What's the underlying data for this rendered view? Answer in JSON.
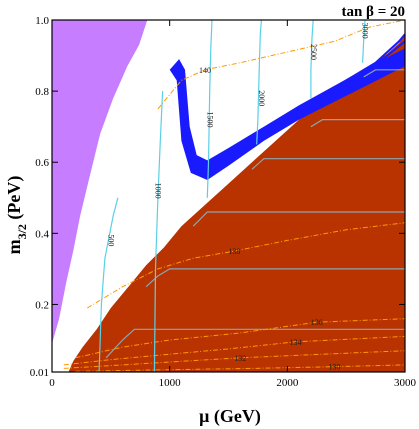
{
  "chart_data": {
    "type": "contour",
    "title": "tan β = 20",
    "xlabel": "μ  (GeV)",
    "ylabel_main": "m",
    "ylabel_sub": "3/2",
    "ylabel_unit": " (PeV)",
    "xlim": [
      0,
      3000
    ],
    "ylim": [
      0.01,
      1.0
    ],
    "x_ticks": [
      0,
      1000,
      2000,
      3000
    ],
    "x_tick_labels": [
      "0",
      "1000",
      "2000",
      "3000"
    ],
    "y_ticks": [
      0.01,
      0.2,
      0.4,
      0.6,
      0.8,
      1.0
    ],
    "y_tick_labels": [
      "0.01",
      "0.2",
      "0.4",
      "0.6",
      "0.8",
      "1.0"
    ],
    "colors": {
      "excluded_left": "#c77dff",
      "excluded_right": "#b83300",
      "blue_band": "#1a1aff",
      "cyan_contours": "#5ad0e6",
      "gray_contours": "#8aa5b0",
      "orange_contours": "#ff9900"
    },
    "regions": {
      "purple": [
        [
          0,
          0.09
        ],
        [
          60,
          0.16
        ],
        [
          120,
          0.26
        ],
        [
          180,
          0.35
        ],
        [
          240,
          0.45
        ],
        [
          320,
          0.56
        ],
        [
          410,
          0.68
        ],
        [
          520,
          0.78
        ],
        [
          640,
          0.87
        ],
        [
          740,
          0.93
        ],
        [
          810,
          1.0
        ],
        [
          0,
          1.0
        ]
      ],
      "red": [
        [
          140,
          0.01
        ],
        [
          3000,
          0.01
        ],
        [
          3000,
          0.96
        ],
        [
          2950,
          0.935
        ],
        [
          2850,
          0.905
        ],
        [
          2700,
          0.87
        ],
        [
          2500,
          0.83
        ],
        [
          2300,
          0.78
        ],
        [
          2100,
          0.72
        ],
        [
          1900,
          0.66
        ],
        [
          1700,
          0.6
        ],
        [
          1500,
          0.54
        ],
        [
          1300,
          0.48
        ],
        [
          1100,
          0.42
        ],
        [
          950,
          0.36
        ],
        [
          800,
          0.31
        ],
        [
          650,
          0.25
        ],
        [
          500,
          0.19
        ],
        [
          380,
          0.13
        ],
        [
          260,
          0.08
        ],
        [
          180,
          0.04
        ]
      ]
    },
    "blue_band": {
      "main": [
        [
          1000,
          0.86
        ],
        [
          1060,
          0.83
        ],
        [
          1100,
          0.66
        ],
        [
          1180,
          0.57
        ],
        [
          1320,
          0.55
        ],
        [
          1500,
          0.59
        ],
        [
          1800,
          0.66
        ],
        [
          2100,
          0.72
        ],
        [
          2400,
          0.77
        ],
        [
          2700,
          0.82
        ],
        [
          3000,
          0.87
        ],
        [
          3000,
          0.92
        ],
        [
          2700,
          0.87
        ],
        [
          2400,
          0.815
        ],
        [
          2100,
          0.76
        ],
        [
          1800,
          0.7
        ],
        [
          1500,
          0.64
        ],
        [
          1320,
          0.605
        ],
        [
          1230,
          0.62
        ],
        [
          1170,
          0.7
        ],
        [
          1130,
          0.86
        ],
        [
          1080,
          0.89
        ]
      ],
      "upper_lines": [
        [
          [
            2350,
            0.8
          ],
          [
            2550,
            0.84
          ],
          [
            2750,
            0.88
          ],
          [
            2950,
            0.94
          ],
          [
            3000,
            0.96
          ]
        ],
        [
          [
            2450,
            0.81
          ],
          [
            2650,
            0.85
          ],
          [
            2850,
            0.9
          ],
          [
            3000,
            0.94
          ]
        ]
      ]
    },
    "cyan_contours": [
      {
        "label": "500",
        "label_at": [
          480,
          0.38
        ],
        "points": [
          [
            400,
            0.01
          ],
          [
            420,
            0.2
          ],
          [
            450,
            0.33
          ],
          [
            520,
            0.45
          ],
          [
            560,
            0.5
          ]
        ]
      },
      {
        "label": "1000",
        "label_at": [
          880,
          0.52
        ],
        "points": [
          [
            870,
            0.01
          ],
          [
            880,
            0.3
          ],
          [
            900,
            0.5
          ],
          [
            920,
            0.66
          ],
          [
            940,
            0.8
          ]
        ]
      },
      {
        "label": "1500",
        "label_at": [
          1320,
          0.72
        ],
        "points": [
          [
            1320,
            0.5
          ],
          [
            1330,
            0.6
          ],
          [
            1340,
            0.8
          ],
          [
            1350,
            0.92
          ],
          [
            1360,
            1.0
          ]
        ]
      },
      {
        "label": "2000",
        "label_at": [
          1760,
          0.78
        ],
        "points": [
          [
            1740,
            0.65
          ],
          [
            1750,
            0.72
          ],
          [
            1760,
            0.85
          ],
          [
            1770,
            0.96
          ],
          [
            1780,
            1.0
          ]
        ]
      },
      {
        "label": "2500",
        "label_at": [
          2200,
          0.91
        ],
        "points": [
          [
            2200,
            0.78
          ],
          [
            2200,
            0.86
          ],
          [
            2210,
            0.95
          ],
          [
            2220,
            1.0
          ]
        ]
      },
      {
        "label": "3000",
        "label_at": [
          2640,
          0.97
        ],
        "points": [
          [
            2640,
            0.88
          ],
          [
            2650,
            0.95
          ],
          [
            2660,
            1.0
          ]
        ]
      }
    ],
    "gray_contours": [
      {
        "points": [
          [
            460,
            0.05
          ],
          [
            600,
            0.1
          ],
          [
            700,
            0.13
          ],
          [
            3000,
            0.13
          ]
        ]
      },
      {
        "points": [
          [
            800,
            0.25
          ],
          [
            900,
            0.28
          ],
          [
            1000,
            0.3
          ],
          [
            3000,
            0.3
          ]
        ]
      },
      {
        "points": [
          [
            1200,
            0.42
          ],
          [
            1320,
            0.46
          ],
          [
            3000,
            0.46
          ]
        ]
      },
      {
        "points": [
          [
            1700,
            0.58
          ],
          [
            1800,
            0.61
          ],
          [
            3000,
            0.61
          ]
        ]
      },
      {
        "points": [
          [
            2200,
            0.7
          ],
          [
            2300,
            0.72
          ],
          [
            3000,
            0.72
          ]
        ]
      },
      {
        "points": [
          [
            2650,
            0.84
          ],
          [
            2750,
            0.86
          ],
          [
            3000,
            0.86
          ]
        ]
      }
    ],
    "orange_contours": [
      {
        "label": "140",
        "label_at": [
          1300,
          0.86
        ],
        "points": [
          [
            900,
            0.75
          ],
          [
            1100,
            0.83
          ],
          [
            1300,
            0.86
          ],
          [
            1600,
            0.88
          ],
          [
            2000,
            0.91
          ],
          [
            2400,
            0.94
          ],
          [
            2700,
            0.98
          ],
          [
            3000,
            1.0
          ]
        ]
      },
      {
        "label": "138",
        "label_at": [
          1550,
          0.35
        ],
        "points": [
          [
            300,
            0.19
          ],
          [
            600,
            0.25
          ],
          [
            900,
            0.3
          ],
          [
            1200,
            0.33
          ],
          [
            1550,
            0.35
          ],
          [
            2000,
            0.38
          ],
          [
            2500,
            0.41
          ],
          [
            3000,
            0.43
          ]
        ]
      },
      {
        "label": "136",
        "label_at": [
          2250,
          0.15
        ],
        "points": [
          [
            200,
            0.05
          ],
          [
            600,
            0.08
          ],
          [
            1000,
            0.1
          ],
          [
            1600,
            0.12
          ],
          [
            2250,
            0.15
          ],
          [
            3000,
            0.16
          ]
        ]
      },
      {
        "label": "134",
        "label_at": [
          2070,
          0.095
        ],
        "points": [
          [
            100,
            0.03
          ],
          [
            500,
            0.045
          ],
          [
            1000,
            0.06
          ],
          [
            1500,
            0.075
          ],
          [
            2070,
            0.095
          ],
          [
            3000,
            0.11
          ]
        ]
      },
      {
        "label": "132",
        "label_at": [
          1600,
          0.05
        ],
        "points": [
          [
            100,
            0.02
          ],
          [
            600,
            0.03
          ],
          [
            1100,
            0.04
          ],
          [
            1600,
            0.05
          ],
          [
            2300,
            0.06
          ],
          [
            3000,
            0.07
          ]
        ]
      },
      {
        "label": "130",
        "label_at": [
          2400,
          0.025
        ],
        "points": [
          [
            200,
            0.012
          ],
          [
            900,
            0.016
          ],
          [
            1700,
            0.02
          ],
          [
            2400,
            0.025
          ],
          [
            3000,
            0.03
          ]
        ]
      }
    ]
  }
}
